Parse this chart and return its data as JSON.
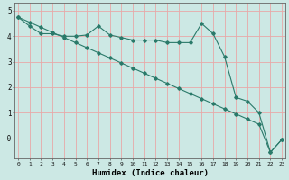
{
  "xlabel": "Humidex (Indice chaleur)",
  "background_color": "#cce8e4",
  "grid_color": "#e8a8a8",
  "line_color": "#2a7a6a",
  "x": [
    0,
    1,
    2,
    3,
    4,
    5,
    6,
    7,
    8,
    9,
    10,
    11,
    12,
    13,
    14,
    15,
    16,
    17,
    18,
    19,
    20,
    21,
    22,
    23
  ],
  "line1": [
    4.75,
    4.4,
    4.1,
    4.1,
    4.0,
    4.0,
    4.05,
    4.4,
    4.05,
    3.95,
    3.85,
    3.85,
    3.85,
    3.75,
    3.75,
    3.75,
    4.5,
    4.1,
    3.2,
    1.6,
    1.45,
    1.0,
    -0.55,
    -0.05
  ],
  "line2": [
    4.75,
    4.55,
    4.35,
    4.15,
    3.95,
    3.75,
    3.55,
    3.35,
    3.15,
    2.95,
    2.75,
    2.55,
    2.35,
    2.15,
    1.95,
    1.75,
    1.55,
    1.35,
    1.15,
    0.95,
    0.75,
    0.55,
    -0.55,
    -0.05
  ],
  "ylim": [
    -0.8,
    5.3
  ],
  "xlim": [
    -0.3,
    23.3
  ],
  "xticks": [
    0,
    1,
    2,
    3,
    4,
    5,
    6,
    7,
    8,
    9,
    10,
    11,
    12,
    13,
    14,
    15,
    16,
    17,
    18,
    19,
    20,
    21,
    22,
    23
  ],
  "yticks": [
    0,
    1,
    2,
    3,
    4,
    5
  ],
  "ytick_labels": [
    "-0",
    "1",
    "2",
    "3",
    "4",
    "5"
  ],
  "figsize": [
    3.2,
    2.0
  ],
  "dpi": 100
}
